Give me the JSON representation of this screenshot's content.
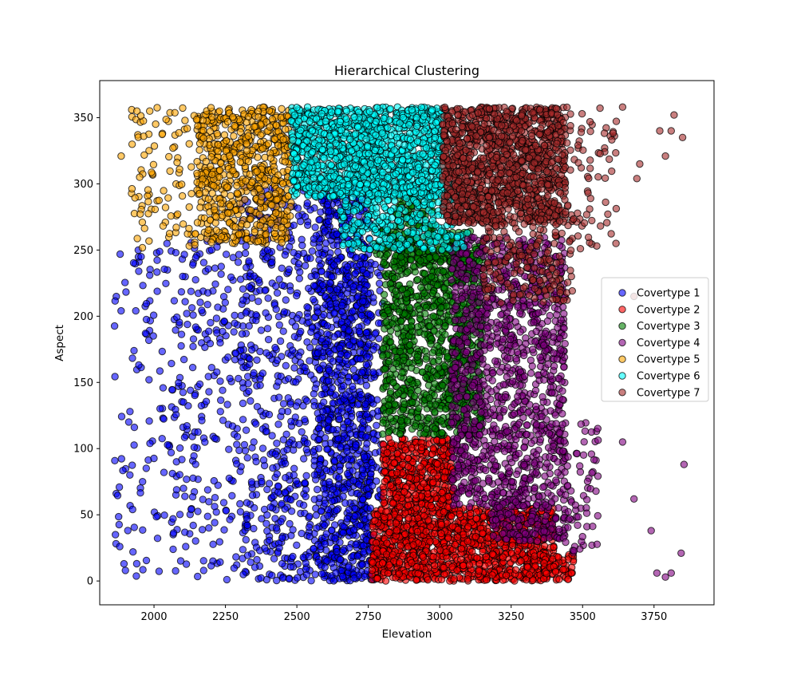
{
  "chart_data": {
    "type": "scatter",
    "title": "Hierarchical Clustering",
    "xlabel": "Elevation",
    "ylabel": "Aspect",
    "xlim": [
      1810,
      3960
    ],
    "ylim": [
      -18,
      378
    ],
    "x_ticks": [
      2000,
      2250,
      2500,
      2750,
      3000,
      3250,
      3500,
      3750
    ],
    "y_ticks": [
      0,
      50,
      100,
      150,
      200,
      250,
      300,
      350
    ],
    "grid": false,
    "legend_position": "center-right",
    "series": [
      {
        "name": "Covertype 1",
        "color": "#0000ff",
        "regions": [
          {
            "x": [
              2560,
              2760
            ],
            "y": [
              0,
              300
            ],
            "n": 1100
          },
          {
            "x": [
              2720,
              2800
            ],
            "y": [
              0,
              240
            ],
            "n": 140
          },
          {
            "x": [
              2300,
              2560
            ],
            "y": [
              0,
              300
            ],
            "n": 520
          },
          {
            "x": [
              2060,
              2300
            ],
            "y": [
              0,
              260
            ],
            "n": 230
          },
          {
            "x": [
              1860,
              2060
            ],
            "y": [
              0,
              255
            ],
            "n": 95
          }
        ],
        "points": [
          [
            1865,
            35
          ],
          [
            1880,
            26
          ],
          [
            1895,
            13
          ],
          [
            1925,
            54
          ],
          [
            1945,
            250
          ],
          [
            1955,
            245
          ],
          [
            1985,
            231
          ],
          [
            1960,
            75
          ],
          [
            1900,
            8
          ]
        ]
      },
      {
        "name": "Covertype 2",
        "color": "#ff0000",
        "regions": [
          {
            "x": [
              2760,
              3400
            ],
            "y": [
              0,
              55
            ],
            "n": 1300
          },
          {
            "x": [
              2800,
              3050
            ],
            "y": [
              55,
              108
            ],
            "n": 450
          },
          {
            "x": [
              3350,
              3470
            ],
            "y": [
              0,
              20
            ],
            "n": 70
          }
        ]
      },
      {
        "name": "Covertype 3",
        "color": "#008000",
        "regions": [
          {
            "x": [
              2800,
              3150
            ],
            "y": [
              110,
              255
            ],
            "n": 1100
          },
          {
            "x": [
              2770,
              3120
            ],
            "y": [
              240,
              265
            ],
            "n": 180
          },
          {
            "x": [
              2840,
              2980
            ],
            "y": [
              265,
              295
            ],
            "n": 70
          }
        ]
      },
      {
        "name": "Covertype 4",
        "color": "#800080",
        "regions": [
          {
            "x": [
              3040,
              3440
            ],
            "y": [
              55,
              260
            ],
            "n": 1200
          },
          {
            "x": [
              3180,
              3450
            ],
            "y": [
              30,
              60
            ],
            "n": 150
          },
          {
            "x": [
              3440,
              3560
            ],
            "y": [
              20,
              120
            ],
            "n": 60
          }
        ],
        "points": [
          [
            3740,
            38
          ],
          [
            3760,
            6
          ],
          [
            3790,
            3
          ],
          [
            3810,
            6
          ],
          [
            3845,
            21
          ],
          [
            3855,
            88
          ],
          [
            3680,
            62
          ],
          [
            3640,
            105
          ]
        ]
      },
      {
        "name": "Covertype 5",
        "color": "#ffa500",
        "regions": [
          {
            "x": [
              2150,
              2480
            ],
            "y": [
              255,
              358
            ],
            "n": 650
          },
          {
            "x": [
              1920,
              2150
            ],
            "y": [
              250,
              358
            ],
            "n": 95
          }
        ],
        "points": [
          [
            1885,
            321
          ],
          [
            1940,
            355
          ],
          [
            1950,
            305
          ],
          [
            1985,
            355
          ]
        ]
      },
      {
        "name": "Covertype 6",
        "color": "#00ffff",
        "regions": [
          {
            "x": [
              2480,
              3010
            ],
            "y": [
              290,
              358
            ],
            "n": 1400
          },
          {
            "x": [
              2650,
              3100
            ],
            "y": [
              250,
              300
            ],
            "n": 350
          }
        ]
      },
      {
        "name": "Covertype 7",
        "color": "#a52a2a",
        "regions": [
          {
            "x": [
              3010,
              3440
            ],
            "y": [
              270,
              358
            ],
            "n": 1300
          },
          {
            "x": [
              3150,
              3470
            ],
            "y": [
              210,
              280
            ],
            "n": 200
          },
          {
            "x": [
              3440,
              3620
            ],
            "y": [
              250,
              358
            ],
            "n": 70
          }
        ],
        "points": [
          [
            3690,
            304
          ],
          [
            3700,
            315
          ],
          [
            3790,
            321
          ],
          [
            3810,
            340
          ],
          [
            3850,
            335
          ],
          [
            3820,
            352
          ],
          [
            3770,
            340
          ],
          [
            3640,
            358
          ],
          [
            3680,
            215
          ]
        ]
      }
    ]
  }
}
